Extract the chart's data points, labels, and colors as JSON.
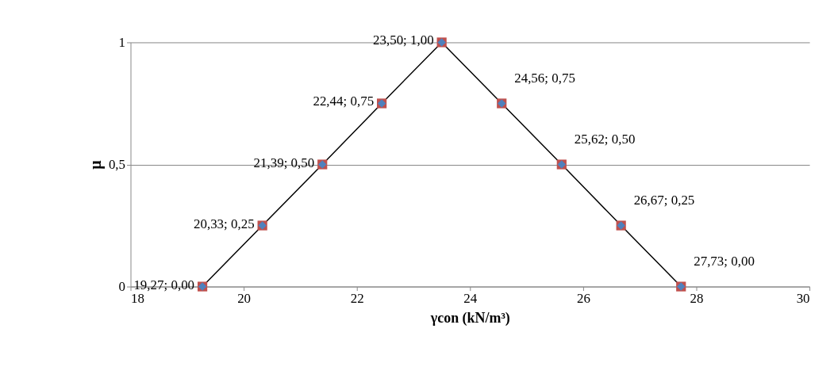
{
  "chart_data": {
    "type": "line",
    "xlabel": "γcon (kN/m³)",
    "ylabel": "μ",
    "x": [
      19.27,
      20.33,
      21.39,
      22.44,
      23.5,
      24.56,
      25.62,
      26.67,
      27.73
    ],
    "series": [
      {
        "type": "line",
        "color": "#000000",
        "marker": "none",
        "values": [
          0,
          0.25,
          0.5,
          0.75,
          1,
          0.75,
          0.5,
          0.25,
          0
        ]
      },
      {
        "type": "scatter",
        "color": "#c0504d",
        "marker": "square",
        "values": [
          0,
          0.25,
          0.5,
          0.75,
          1,
          0.75,
          0.5,
          0.25,
          0
        ]
      },
      {
        "type": "scatter",
        "color": "#4f81bd",
        "marker": "diamond",
        "values": [
          0,
          0.25,
          0.5,
          0.75,
          1,
          0.75,
          0.5,
          0.25,
          0
        ],
        "value_labels": [
          "19,27;  0,00",
          "20,33;  0,25",
          "21,39;  0,50",
          "22,44;  0,75",
          "23,50;  1,00",
          "24,56;  0,75",
          "25,62;  0,50",
          "26,67;  0,25",
          "27,73;  0,00"
        ]
      }
    ],
    "xlim": [
      18,
      30
    ],
    "xticks": [
      18,
      20,
      22,
      24,
      26,
      28,
      30
    ],
    "ylim": [
      0,
      1
    ],
    "yticks": [
      0,
      {
        "value": 0.5,
        "label": "0,5"
      },
      1
    ],
    "grid": "y"
  }
}
